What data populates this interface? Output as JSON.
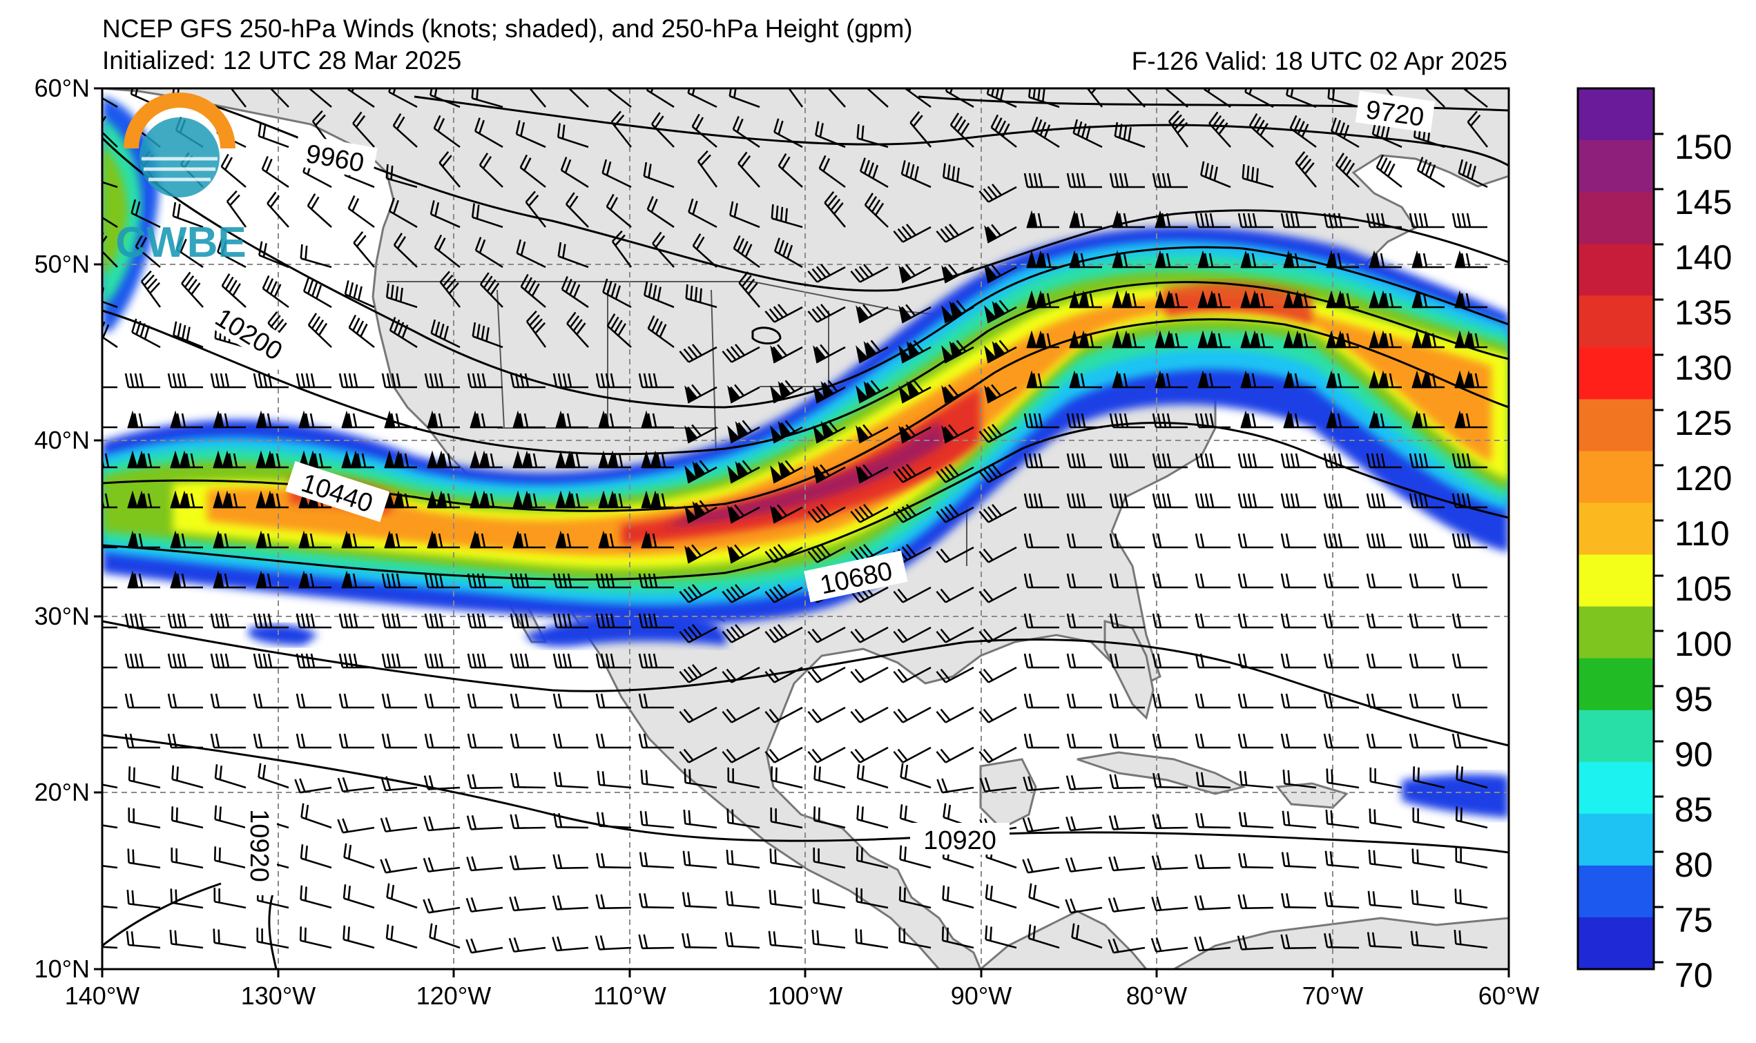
{
  "title": {
    "line1": "NCEP GFS 250-hPa Winds (knots; shaded), and 250-hPa Height (gpm)",
    "line2": "Initialized: 12 UTC 28 Mar 2025",
    "valid": "F-126  Valid: 18 UTC 02 Apr 2025"
  },
  "logo": {
    "text": "CWBE"
  },
  "axes": {
    "lat_labels": [
      "60°N",
      "50°N",
      "40°N",
      "30°N",
      "20°N",
      "10°N"
    ],
    "lon_labels": [
      "140°W",
      "130°W",
      "120°W",
      "110°W",
      "100°W",
      "90°W",
      "80°W",
      "70°W",
      "60°W"
    ]
  },
  "contour_labels": [
    "9720",
    "9960",
    "10200",
    "10440",
    "10680",
    "10920",
    "10920"
  ],
  "colorbar": {
    "ticks": [
      "150",
      "145",
      "140",
      "135",
      "130",
      "125",
      "120",
      "110",
      "105",
      "100",
      "95",
      "90",
      "85",
      "80",
      "75",
      "70"
    ],
    "colors": [
      "#6a1b9a",
      "#8e1f7a",
      "#a51d5c",
      "#c81d3a",
      "#e53226",
      "#ff2019",
      "#f27521",
      "#fb9a1e",
      "#fcb81f",
      "#f3ff19",
      "#7ec51f",
      "#20bb25",
      "#29dfa8",
      "#1cf2f0",
      "#1ec3f4",
      "#1c59ee",
      "#1f2ad6"
    ]
  }
}
